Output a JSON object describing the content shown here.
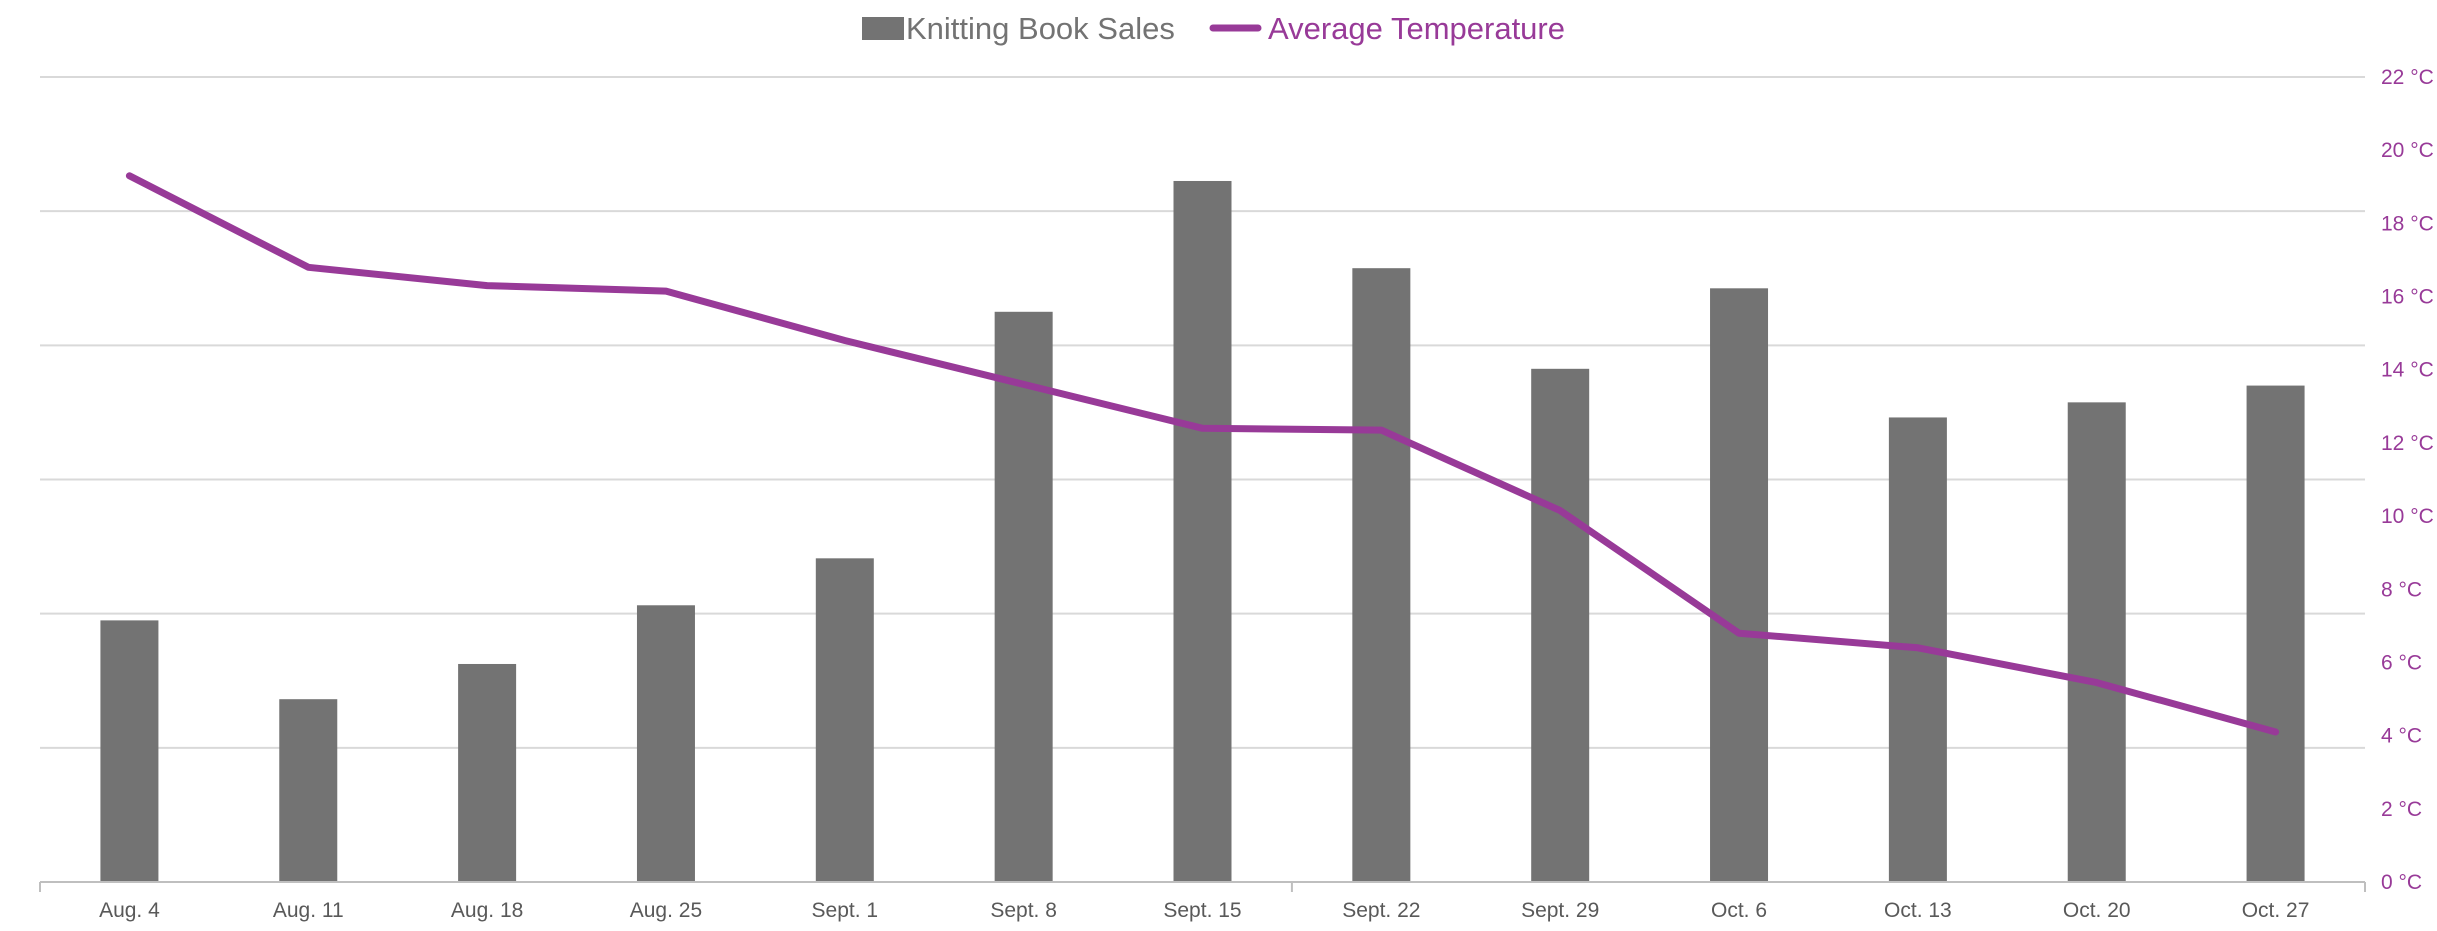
{
  "chart_data": {
    "type": "bar",
    "categories": [
      "Aug. 4",
      "Aug. 11",
      "Aug. 18",
      "Aug. 25",
      "Sept. 1",
      "Sept. 8",
      "Sept. 15",
      "Sept. 22",
      "Sept. 29",
      "Oct. 6",
      "Oct. 13",
      "Oct. 20",
      "Oct. 27"
    ],
    "series": [
      {
        "name": "Knitting Book Sales",
        "type": "bar",
        "axis": "left",
        "color": "#737373",
        "values": [
          7.8,
          5.45,
          6.5,
          8.25,
          9.65,
          17.0,
          20.9,
          18.3,
          15.3,
          17.7,
          13.85,
          14.3,
          14.8
        ]
      },
      {
        "name": "Average Temperature",
        "type": "line",
        "axis": "right",
        "color": "#983A98",
        "values": [
          19.3,
          16.8,
          16.3,
          16.15,
          14.8,
          13.6,
          12.4,
          12.35,
          10.15,
          6.8,
          6.4,
          5.45,
          4.1
        ]
      }
    ],
    "y_left": {
      "min": 0,
      "max": 24,
      "gridlines": [
        4,
        8,
        12,
        16,
        20,
        24
      ],
      "tick_labels_shown": false
    },
    "y_right": {
      "min": 0,
      "max": 22,
      "step": 2,
      "unit_suffix": " °C",
      "color": "#983A98",
      "tick_labels": [
        "0 °C",
        "2 °C",
        "4 °C",
        "6 °C",
        "8 °C",
        "10 °C",
        "12 °C",
        "14 °C",
        "16 °C",
        "18 °C",
        "20 °C",
        "22 °C"
      ]
    },
    "legend": {
      "position": "top-center"
    },
    "grid": true,
    "title": "",
    "xlabel": "",
    "ylabel": ""
  }
}
